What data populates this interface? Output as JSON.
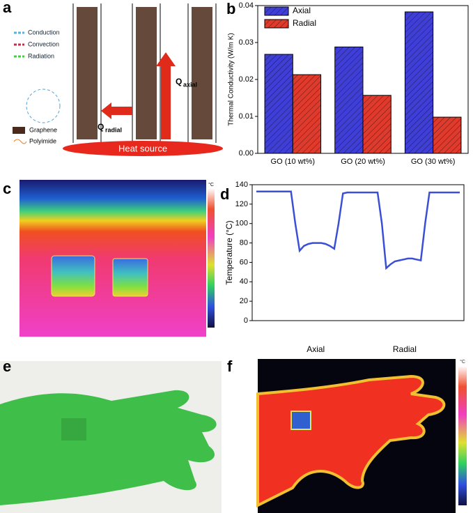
{
  "panel_labels": [
    "a",
    "b",
    "c",
    "d",
    "e",
    "f"
  ],
  "diagram": {
    "legend": [
      "Conduction",
      "Convection",
      "Radiation"
    ],
    "materials": [
      "Graphene",
      "Polyimide"
    ],
    "q_axial": {
      "symbol": "Q",
      "subscript": "axial"
    },
    "q_radial": {
      "symbol": "Q",
      "subscript": "radial"
    },
    "heat_source": "Heat source"
  },
  "thermal_units": [
    "°C",
    "°C"
  ],
  "chart_data": [
    {
      "type": "bar",
      "categories": [
        "GO (10 wt%)",
        "GO (20 wt%)",
        "GO (30 wt%)"
      ],
      "series": [
        {
          "name": "Axial",
          "color": "#3f3fd8",
          "values": [
            0.0268,
            0.0288,
            0.0383
          ]
        },
        {
          "name": "Radial",
          "color": "#e03a2c",
          "values": [
            0.0213,
            0.0157,
            0.0098
          ]
        }
      ],
      "ylabel": "Thermal Conductivity (W/m K)",
      "ylim": [
        0,
        0.04
      ],
      "yticks": [
        {
          "value": 0,
          "label": "0.00"
        },
        0.01,
        0.02,
        0.03,
        0.04
      ],
      "legend": "upper-left",
      "hatch": true
    },
    {
      "type": "line",
      "ylabel": "Temperature (°C)",
      "color": "#3a4fd6",
      "values": [
        133,
        133,
        133,
        133,
        133,
        133,
        133,
        133,
        133,
        100,
        72,
        77,
        79,
        80,
        80,
        80,
        79,
        77,
        74,
        100,
        131,
        132,
        132,
        132,
        132,
        132,
        132,
        132,
        132,
        100,
        54,
        58,
        61,
        62,
        63,
        64,
        64,
        63,
        62,
        100,
        132,
        132,
        132,
        132,
        132,
        132,
        132,
        132
      ],
      "ylim": [
        0,
        140
      ],
      "yticks": [
        0,
        20,
        40,
        60,
        80,
        100,
        120,
        140
      ],
      "annotations": [
        "Axial",
        "Radial"
      ]
    }
  ]
}
